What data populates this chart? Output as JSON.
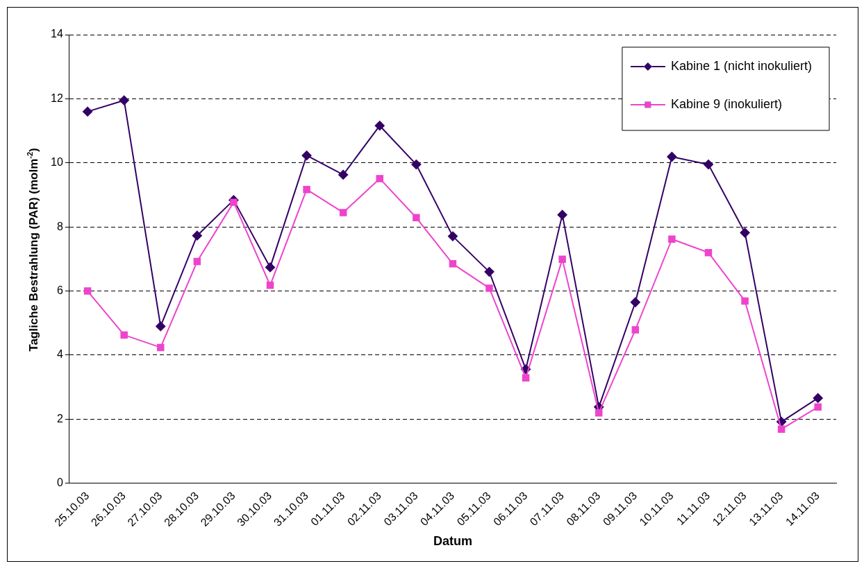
{
  "chart_data": {
    "type": "line",
    "xlabel": "Datum",
    "ylabel": "Tagliche Bestrahlung (PAR) (molm$^{-2}$)",
    "categories": [
      "25.10.03",
      "26.10.03",
      "27.10.03",
      "28.10.03",
      "29.10.03",
      "30.10.03",
      "31.10.03",
      "01.11.03",
      "02.11.03",
      "03.11.03",
      "04.11.03",
      "05.11.03",
      "06.11.03",
      "07.11.03",
      "08.11.03",
      "09.11.03",
      "10.11.03",
      "11.11.03",
      "12.11.03",
      "13.11.03",
      "14.11.03"
    ],
    "series": [
      {
        "name": "Kabine 1 (nicht inokuliert)",
        "color": "#330066",
        "marker": "diamond",
        "values": [
          11.6,
          11.95,
          4.9,
          7.73,
          8.84,
          6.74,
          10.23,
          9.63,
          11.16,
          9.95,
          7.71,
          6.6,
          3.56,
          8.38,
          2.38,
          5.65,
          10.19,
          9.95,
          7.82,
          1.92,
          2.66
        ]
      },
      {
        "name": "Kabine 9 (inokuliert)",
        "color": "#ee44cc",
        "marker": "square",
        "values": [
          6.0,
          4.63,
          4.24,
          6.92,
          8.77,
          6.18,
          9.17,
          8.45,
          9.51,
          8.29,
          6.85,
          6.09,
          3.29,
          6.99,
          2.2,
          4.79,
          7.62,
          7.2,
          5.69,
          1.69,
          2.38
        ]
      }
    ],
    "ylim": [
      0,
      14
    ],
    "yticks": [
      0,
      2,
      4,
      6,
      8,
      10,
      12,
      14
    ],
    "grid": "y",
    "legend": "top right",
    "line_style": "solid"
  }
}
